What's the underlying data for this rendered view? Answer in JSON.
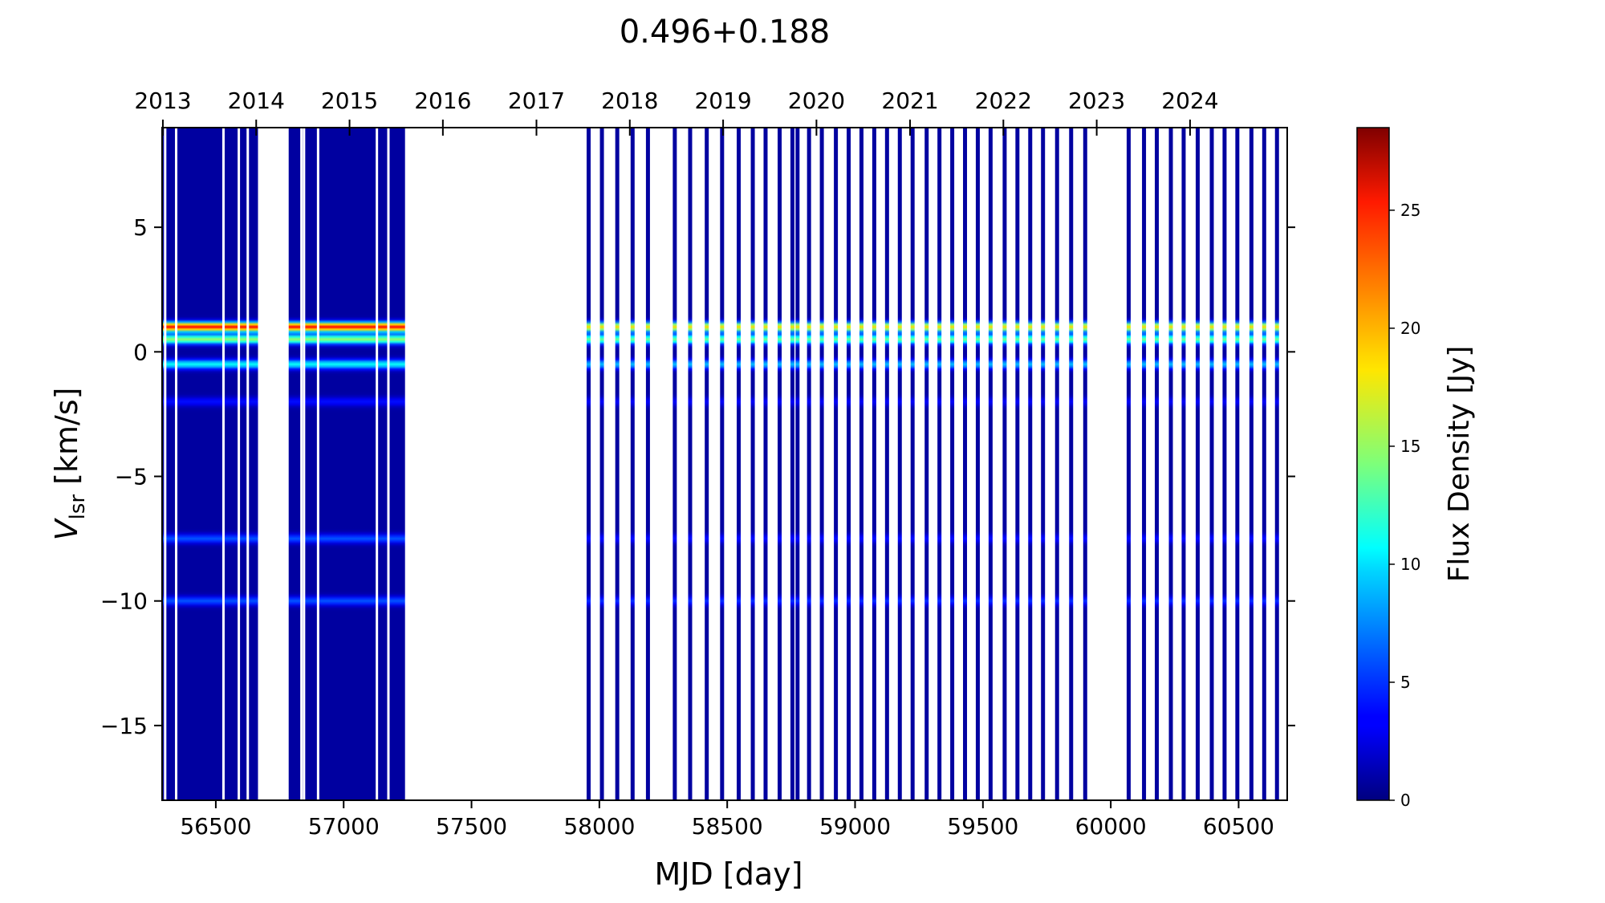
{
  "chart_data": {
    "type": "heatmap",
    "title": "0.496+0.188",
    "xlabel": "MJD [day]",
    "ylabel_main": "V",
    "ylabel_sub": "lsr",
    "ylabel_rest": " [km/s]",
    "colorbar_label": "Flux Density [Jy]",
    "colormap": "jet",
    "colorbar_range": [
      0,
      28.5
    ],
    "xlim": [
      56290,
      60690
    ],
    "ylim": [
      -18,
      9
    ],
    "x_ticks": [
      56500,
      57000,
      57500,
      58000,
      58500,
      59000,
      59500,
      60000,
      60500
    ],
    "y_ticks": [
      5,
      0,
      -5,
      -10,
      -15
    ],
    "y_tick_labels": [
      "5",
      "0",
      "−5",
      "−10",
      "−15"
    ],
    "colorbar_ticks": [
      0,
      5,
      10,
      15,
      20,
      25
    ],
    "top_axis_years": [
      {
        "label": "2013",
        "mjd": 56293
      },
      {
        "label": "2014",
        "mjd": 56658
      },
      {
        "label": "2015",
        "mjd": 57023
      },
      {
        "label": "2016",
        "mjd": 57388
      },
      {
        "label": "2017",
        "mjd": 57754
      },
      {
        "label": "2018",
        "mjd": 58119
      },
      {
        "label": "2019",
        "mjd": 58484
      },
      {
        "label": "2020",
        "mjd": 58849
      },
      {
        "label": "2021",
        "mjd": 59215
      },
      {
        "label": "2022",
        "mjd": 59580
      },
      {
        "label": "2023",
        "mjd": 59945
      },
      {
        "label": "2024",
        "mjd": 60310
      }
    ],
    "dense_blocks": [
      {
        "start": 56290,
        "end": 56665
      },
      {
        "start": 56785,
        "end": 57240
      }
    ],
    "dense_gaps": [
      56302,
      56345,
      56530,
      56590,
      56625,
      56835,
      56845,
      56900,
      57130,
      57175
    ],
    "observations": [
      57958,
      58010,
      58070,
      58130,
      58190,
      58295,
      58355,
      58420,
      58480,
      58545,
      58600,
      58650,
      58705,
      58755,
      58775,
      58820,
      58870,
      58925,
      58975,
      59025,
      59075,
      59125,
      59175,
      59225,
      59280,
      59330,
      59380,
      59430,
      59480,
      59530,
      59585,
      59635,
      59685,
      59735,
      59790,
      59845,
      59900,
      60070,
      60130,
      60180,
      60235,
      60285,
      60340,
      60395,
      60445,
      60495,
      60550,
      60600,
      60650
    ],
    "features": [
      {
        "velocity": 1.0,
        "flux_dense": 24,
        "flux_sparse": 18
      },
      {
        "velocity": 0.5,
        "flux_dense": 14,
        "flux_sparse": 13
      },
      {
        "velocity": -0.5,
        "flux_dense": 10,
        "flux_sparse": 8
      },
      {
        "velocity": -2.0,
        "flux_dense": 3,
        "flux_sparse": 2.5
      },
      {
        "velocity": -7.5,
        "flux_dense": 5,
        "flux_sparse": 3
      },
      {
        "velocity": -10.0,
        "flux_dense": 5,
        "flux_sparse": 4
      }
    ]
  }
}
